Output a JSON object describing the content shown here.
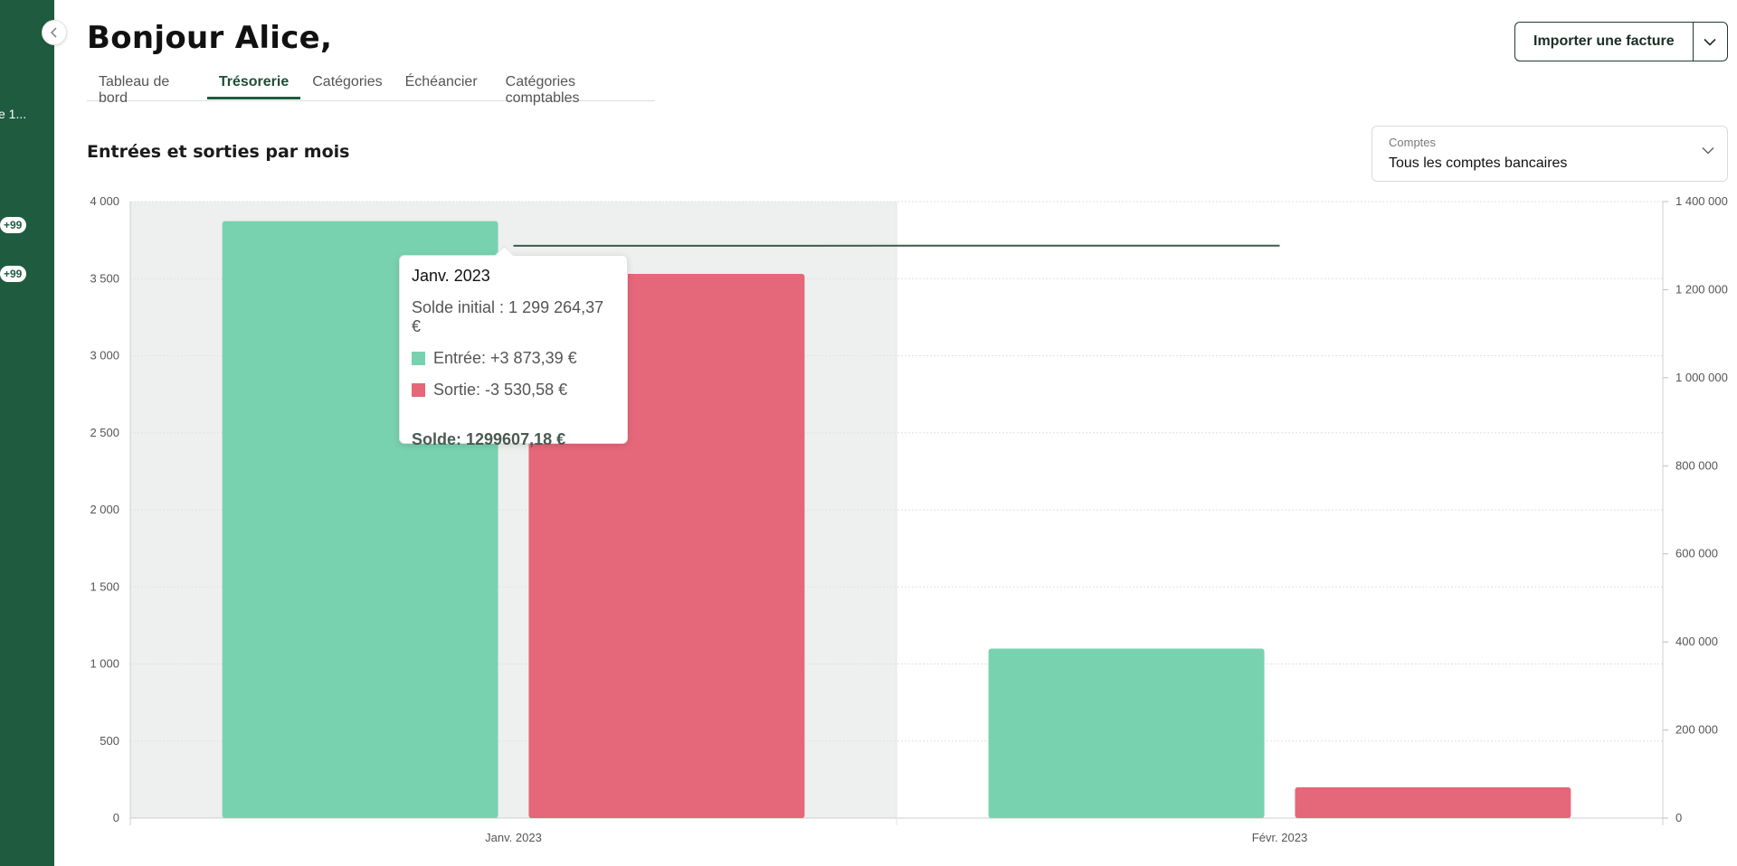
{
  "sidebar": {
    "truncated_item": "e 1...",
    "badges": [
      "+99",
      "+99"
    ],
    "collapse_icon": "chevron-left-icon"
  },
  "header": {
    "greeting": "Bonjour Alice,",
    "tabs": [
      {
        "label": "Tableau de bord",
        "active": false
      },
      {
        "label": "Trésorerie",
        "active": true
      },
      {
        "label": "Catégories",
        "active": false
      },
      {
        "label": "Échéancier",
        "active": false
      },
      {
        "label": "Catégories comptables",
        "active": false
      }
    ],
    "import_button": "Importer une facture",
    "import_menu_icon": "chevron-down-icon"
  },
  "section": {
    "title": "Entrées et sorties par mois"
  },
  "account_select": {
    "label": "Comptes",
    "value": "Tous les comptes bancaires"
  },
  "tooltip": {
    "title": "Janv. 2023",
    "initial_balance": "Solde initial : 1 299 264,37 €",
    "entree": "Entrée: +3 873,39 €",
    "sortie": "Sortie: -3 530,58 €",
    "solde": "Solde: 1299607,18 €"
  },
  "colors": {
    "sidebar": "#1f5c3f",
    "entree": "#78d2b0",
    "sortie": "#e5677a",
    "balance_line": "#3e5a4c",
    "hover_band": "#edf0ee"
  },
  "chart_data": {
    "type": "bar",
    "categories": [
      "Janv. 2023",
      "Févr. 2023"
    ],
    "series": [
      {
        "name": "Entrée",
        "axis": "left",
        "values": [
          3873.39,
          1100
        ]
      },
      {
        "name": "Sortie",
        "axis": "left",
        "values": [
          3530.58,
          200
        ]
      },
      {
        "name": "Solde",
        "type": "line",
        "axis": "right",
        "values": [
          1299607.18,
          1300000
        ]
      }
    ],
    "y_left": {
      "min": 0,
      "max": 4000,
      "ticks": [
        0,
        500,
        1000,
        1500,
        2000,
        2500,
        3000,
        3500,
        4000
      ],
      "tick_labels": [
        "0",
        "500",
        "1 000",
        "1 500",
        "2 000",
        "2 500",
        "3 000",
        "3 500",
        "4 000"
      ]
    },
    "y_right": {
      "min": 0,
      "max": 1400000,
      "ticks": [
        0,
        200000,
        400000,
        600000,
        800000,
        1000000,
        1200000,
        1400000
      ],
      "tick_labels": [
        "0",
        "200 000",
        "400 000",
        "600 000",
        "800 000",
        "1 000 000",
        "1 200 000",
        "1 400 000"
      ]
    },
    "highlighted_category": "Janv. 2023",
    "grid": true
  }
}
